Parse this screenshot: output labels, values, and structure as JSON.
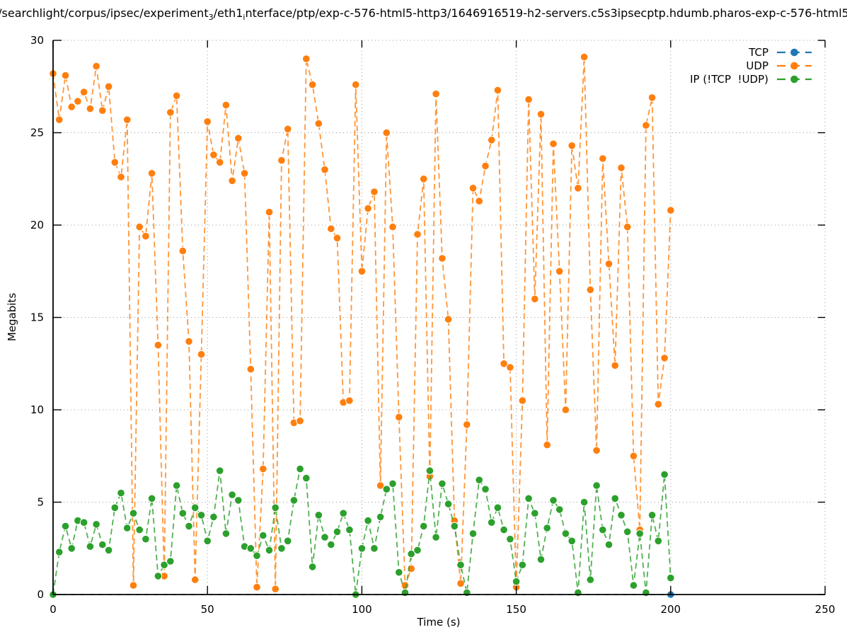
{
  "title": {
    "seg1": "/searchlight/corpus/ipsec/experiment",
    "sub1": "3",
    "seg2": "/eth1",
    "sub2": "i",
    "seg3": "nterface/ptp/exp-c-576-html5-http3/1646916519-h2-servers.c5s3ipsecptp.hdumb.pharos-exp-c-576-html5"
  },
  "axes": {
    "xlabel": "Time (s)",
    "ylabel": "Megabits"
  },
  "chart_data": {
    "type": "line",
    "title": "/searchlight/corpus/ipsec/experiment₃/eth1ᵢnterface/ptp/exp-c-576-html5-http3/1646916519-h2-servers.c5s3ipsecptp.hdumb.pharos-exp-c-576-html5",
    "xlabel": "Time (s)",
    "ylabel": "Megabits",
    "xlim": [
      0,
      250
    ],
    "ylim": [
      0,
      30
    ],
    "x_ticks": [
      0,
      50,
      100,
      150,
      200,
      250
    ],
    "y_ticks": [
      0,
      5,
      10,
      15,
      20,
      25,
      30
    ],
    "grid": true,
    "legend_position": "top-right",
    "marker": "filled-circle",
    "line_style": "dashed",
    "x": [
      0,
      2,
      4,
      6,
      8,
      10,
      12,
      14,
      16,
      18,
      20,
      22,
      24,
      26,
      28,
      30,
      32,
      34,
      36,
      38,
      40,
      42,
      44,
      46,
      48,
      50,
      52,
      54,
      56,
      58,
      60,
      62,
      64,
      66,
      68,
      70,
      72,
      74,
      76,
      78,
      80,
      82,
      84,
      86,
      88,
      90,
      92,
      94,
      96,
      98,
      100,
      102,
      104,
      106,
      108,
      110,
      112,
      114,
      116,
      118,
      120,
      122,
      124,
      126,
      128,
      130,
      132,
      134,
      136,
      138,
      140,
      142,
      144,
      146,
      148,
      150,
      152,
      154,
      156,
      158,
      160,
      162,
      164,
      166,
      168,
      170,
      172,
      174,
      176,
      178,
      180,
      182,
      184,
      186,
      188,
      190,
      192,
      194,
      196,
      198,
      200
    ],
    "series": [
      {
        "name": "TCP",
        "color": "#1f77b4",
        "flat_zero": true,
        "x": [
          0,
          200
        ],
        "values": [
          0,
          0
        ]
      },
      {
        "name": "UDP",
        "color": "#ff7f0e",
        "values": [
          28.2,
          25.7,
          28.1,
          26.4,
          26.7,
          27.2,
          26.3,
          28.6,
          26.2,
          27.5,
          23.4,
          22.6,
          25.7,
          0.5,
          19.9,
          19.4,
          22.8,
          13.5,
          1.0,
          26.1,
          27.0,
          18.6,
          13.7,
          0.8,
          13.0,
          25.6,
          23.8,
          23.4,
          26.5,
          22.4,
          24.7,
          22.8,
          12.2,
          0.4,
          6.8,
          20.7,
          0.3,
          23.5,
          25.2,
          9.3,
          9.4,
          29.0,
          27.6,
          25.5,
          23.0,
          19.8,
          19.3,
          10.4,
          10.5,
          27.6,
          17.5,
          20.9,
          21.8,
          5.9,
          25.0,
          19.9,
          9.6,
          0.5,
          1.4,
          19.5,
          22.5,
          6.4,
          27.1,
          18.2,
          14.9,
          4.0,
          0.6,
          9.2,
          22.0,
          21.3,
          23.2,
          24.6,
          27.3,
          12.5,
          12.3,
          0.4,
          10.5,
          26.8,
          16.0,
          26.0,
          8.1,
          24.4,
          17.5,
          10.0,
          24.3,
          22.0,
          29.1,
          16.5,
          7.8,
          23.6,
          17.9,
          12.4,
          23.1,
          19.9,
          7.5,
          3.5,
          25.4,
          26.9,
          10.3,
          12.8,
          20.8
        ]
      },
      {
        "name": "IP (!TCP  !UDP)",
        "color": "#2ca02c",
        "values": [
          0.0,
          2.3,
          3.7,
          2.5,
          4.0,
          3.9,
          2.6,
          3.8,
          2.7,
          2.4,
          4.7,
          5.5,
          3.6,
          4.4,
          3.5,
          3.0,
          5.2,
          1.0,
          1.6,
          1.8,
          5.9,
          4.4,
          3.7,
          4.7,
          4.3,
          2.9,
          4.2,
          6.7,
          3.3,
          5.4,
          5.1,
          2.6,
          2.5,
          2.1,
          3.2,
          2.4,
          4.7,
          2.5,
          2.9,
          5.1,
          6.8,
          6.3,
          1.5,
          4.3,
          3.1,
          2.7,
          3.4,
          4.4,
          3.5,
          0.0,
          2.5,
          4.0,
          2.5,
          4.2,
          5.7,
          6.0,
          1.2,
          0.1,
          2.2,
          2.4,
          3.7,
          6.7,
          3.1,
          6.0,
          4.9,
          3.7,
          1.6,
          0.1,
          3.3,
          6.2,
          5.7,
          3.9,
          4.7,
          3.5,
          3.0,
          0.7,
          1.6,
          5.2,
          4.4,
          1.9,
          3.6,
          5.1,
          4.6,
          3.3,
          2.9,
          0.1,
          5.0,
          0.8,
          5.9,
          3.5,
          2.7,
          5.2,
          4.3,
          3.4,
          0.5,
          3.3,
          0.1,
          4.3,
          2.9,
          6.5,
          0.9
        ]
      }
    ]
  }
}
